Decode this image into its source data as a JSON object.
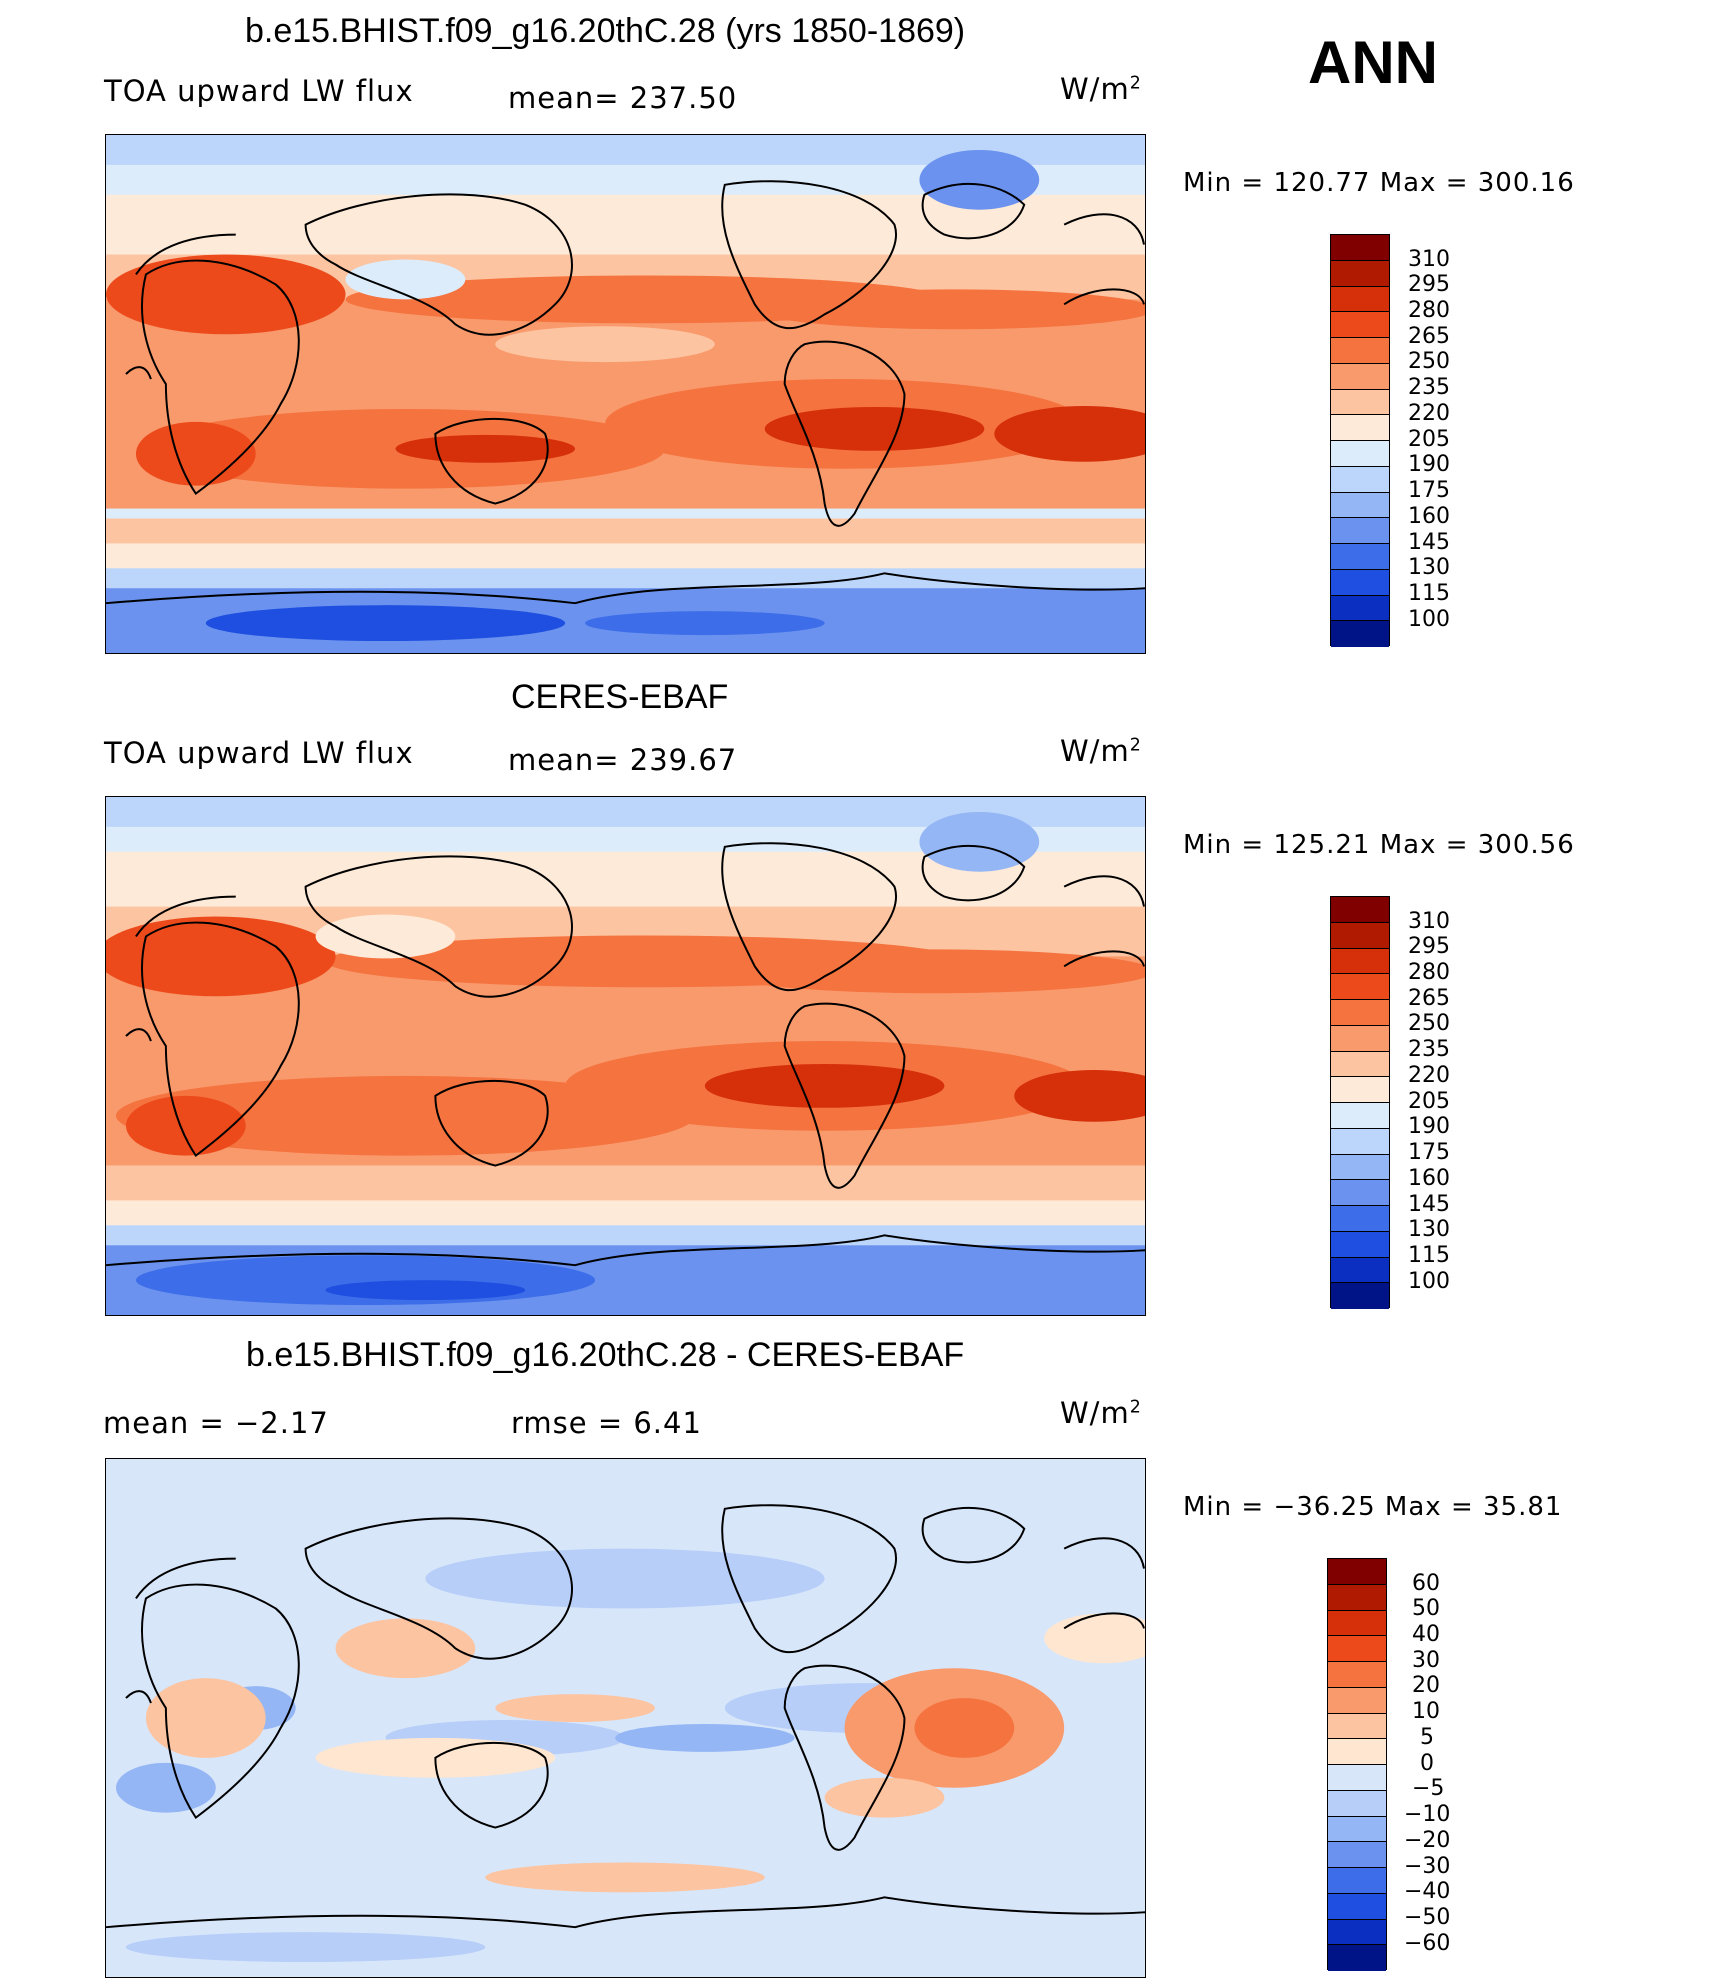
{
  "season": "ANN",
  "panels": [
    {
      "title": "b.e15.BHIST.f09_g16.20thC.28 (yrs 1850-1869)",
      "left_label": "TOA upward LW flux",
      "center_label": "mean=  237.50",
      "units": "W/m",
      "units_sup": "2",
      "minmax": "Min  =  120.77  Max  =  300.16",
      "colorbar_labels": [
        "310",
        "295",
        "280",
        "265",
        "250",
        "235",
        "220",
        "205",
        "190",
        "175",
        "160",
        "145",
        "130",
        "115",
        "100"
      ]
    },
    {
      "title": "CERES-EBAF",
      "left_label": "TOA upward LW flux",
      "center_label": "mean=  239.67",
      "units": "W/m",
      "units_sup": "2",
      "minmax": "Min  =  125.21  Max  =  300.56",
      "colorbar_labels": [
        "310",
        "295",
        "280",
        "265",
        "250",
        "235",
        "220",
        "205",
        "190",
        "175",
        "160",
        "145",
        "130",
        "115",
        "100"
      ]
    },
    {
      "title": "b.e15.BHIST.f09_g16.20thC.28 - CERES-EBAF",
      "left_label": "mean  =    −2.17",
      "center_label": "rmse  =     6.41",
      "units": "W/m",
      "units_sup": "2",
      "minmax": "Min  =  −36.25  Max  =    35.81",
      "colorbar_labels": [
        "60",
        "50",
        "40",
        "30",
        "20",
        "10",
        "5",
        "0",
        "−5",
        "−10",
        "−20",
        "−30",
        "−40",
        "−50",
        "−60"
      ]
    }
  ],
  "colors": {
    "abs_scale": [
      "#800000",
      "#b01a00",
      "#d6300a",
      "#ed4a1c",
      "#f5733f",
      "#f99a6c",
      "#fcc4a0",
      "#feead8",
      "#dcecfb",
      "#bcd5fa",
      "#94b6f5",
      "#6a92ee",
      "#3d6de8",
      "#1f4fe0",
      "#0b2fc0",
      "#001488"
    ],
    "diff_scale": [
      "#800000",
      "#b01a00",
      "#d6300a",
      "#ed4a1c",
      "#f5733f",
      "#f99a6c",
      "#fcc4a0",
      "#fee6d0",
      "#d8e6fa",
      "#b6cef8",
      "#94b6f5",
      "#6a92ee",
      "#3d6de8",
      "#1f4fe0",
      "#0b2fc0",
      "#001488"
    ]
  }
}
